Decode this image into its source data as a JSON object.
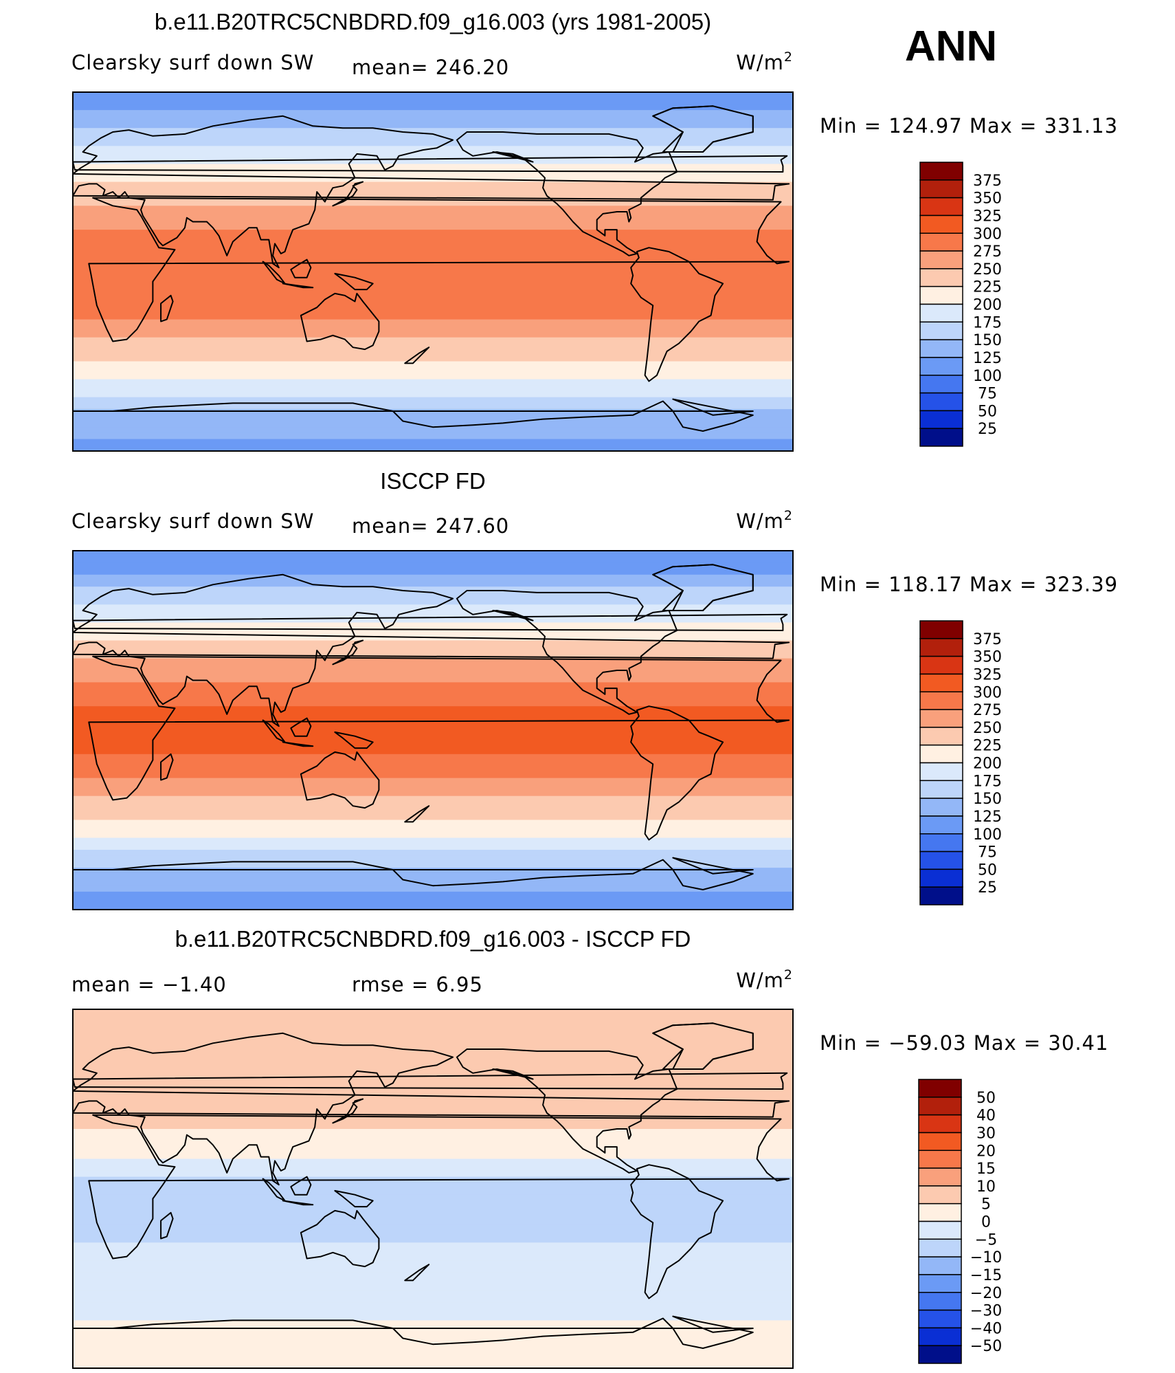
{
  "season": "ANN",
  "chart_data": [
    {
      "type": "heatmap",
      "title": "b.e11.B20TRC5CNBDRD.f09_g16.003 (yrs 1981-2005)",
      "variable": "Clearsky surf down SW",
      "mean_text": "mean= 246.20",
      "units": "W/m",
      "units_sup": "2",
      "minmax_text": "Min  =  124.97  Max  =  331.13",
      "min": 124.97,
      "max": 331.13,
      "mean": 246.2,
      "colorbar": {
        "levels": [
          "375",
          "350",
          "325",
          "300",
          "275",
          "250",
          "225",
          "200",
          "175",
          "150",
          "125",
          "100",
          "75",
          "50",
          "25"
        ],
        "colors": [
          "#800000",
          "#b2200c",
          "#d93514",
          "#f25a22",
          "#f7784a",
          "#f9a07c",
          "#fccab0",
          "#fff0e2",
          "#dbe9fb",
          "#bdd5fa",
          "#93b7f7",
          "#6b9af5",
          "#4577f0",
          "#2552e8",
          "#0a2fd4",
          "#000f8a"
        ]
      },
      "zonal_bands": [
        [
          90,
          112
        ],
        [
          80,
          125
        ],
        [
          70,
          160
        ],
        [
          60,
          185
        ],
        [
          50,
          212
        ],
        [
          40,
          238
        ],
        [
          30,
          258
        ],
        [
          20,
          280
        ],
        [
          10,
          292
        ],
        [
          0,
          296
        ],
        [
          -10,
          296
        ],
        [
          -20,
          282
        ],
        [
          -30,
          258
        ],
        [
          -40,
          236
        ],
        [
          -50,
          210
        ],
        [
          -60,
          180
        ],
        [
          -70,
          150
        ],
        [
          -80,
          130
        ],
        [
          -90,
          118
        ]
      ]
    },
    {
      "type": "heatmap",
      "title": "ISCCP FD",
      "variable": "Clearsky surf down SW",
      "mean_text": "mean= 247.60",
      "units": "W/m",
      "units_sup": "2",
      "minmax_text": "Min  =  118.17  Max  =  323.39",
      "min": 118.17,
      "max": 323.39,
      "mean": 247.6,
      "colorbar": {
        "levels": [
          "375",
          "350",
          "325",
          "300",
          "275",
          "250",
          "225",
          "200",
          "175",
          "150",
          "125",
          "100",
          "75",
          "50",
          "25"
        ],
        "colors": [
          "#800000",
          "#b2200c",
          "#d93514",
          "#f25a22",
          "#f7784a",
          "#f9a07c",
          "#fccab0",
          "#fff0e2",
          "#dbe9fb",
          "#bdd5fa",
          "#93b7f7",
          "#6b9af5",
          "#4577f0",
          "#2552e8",
          "#0a2fd4",
          "#000f8a"
        ]
      },
      "zonal_bands": [
        [
          90,
          98
        ],
        [
          80,
          118
        ],
        [
          70,
          152
        ],
        [
          60,
          182
        ],
        [
          50,
          210
        ],
        [
          40,
          238
        ],
        [
          30,
          262
        ],
        [
          20,
          290
        ],
        [
          10,
          305
        ],
        [
          0,
          308
        ],
        [
          -10,
          302
        ],
        [
          -20,
          285
        ],
        [
          -30,
          260
        ],
        [
          -40,
          235
        ],
        [
          -50,
          208
        ],
        [
          -60,
          178
        ],
        [
          -70,
          148
        ],
        [
          -80,
          125
        ],
        [
          -90,
          115
        ]
      ]
    },
    {
      "type": "heatmap",
      "title": "b.e11.B20TRC5CNBDRD.f09_g16.003 - ISCCP FD",
      "mean_text": "mean =    −1.40",
      "rmse_text": "rmse =     6.95",
      "units": "W/m",
      "units_sup": "2",
      "minmax_text": "Min  =  −59.03  Max  =    30.41",
      "min": -59.03,
      "max": 30.41,
      "mean": -1.4,
      "rmse": 6.95,
      "colorbar": {
        "levels": [
          "50",
          "40",
          "30",
          "20",
          "15",
          "10",
          "5",
          "0",
          "−5",
          "−10",
          "−15",
          "−20",
          "−30",
          "−40",
          "−50"
        ],
        "colors": [
          "#800000",
          "#b2200c",
          "#d93514",
          "#f25a22",
          "#f7784a",
          "#f9a07c",
          "#fccab0",
          "#fff0e2",
          "#dbe9fb",
          "#bdd5fa",
          "#93b7f7",
          "#6b9af5",
          "#4577f0",
          "#2552e8",
          "#0a2fd4",
          "#000f8a"
        ]
      },
      "zonal_bands": [
        [
          90,
          8
        ],
        [
          80,
          10
        ],
        [
          70,
          9
        ],
        [
          60,
          8
        ],
        [
          50,
          9
        ],
        [
          40,
          8
        ],
        [
          30,
          5
        ],
        [
          20,
          2
        ],
        [
          10,
          -3
        ],
        [
          0,
          -7
        ],
        [
          -10,
          -8
        ],
        [
          -20,
          -7
        ],
        [
          -30,
          -4
        ],
        [
          -40,
          -3
        ],
        [
          -50,
          -3
        ],
        [
          -60,
          -2
        ],
        [
          -70,
          2
        ],
        [
          -80,
          3
        ],
        [
          -90,
          3
        ]
      ]
    }
  ]
}
